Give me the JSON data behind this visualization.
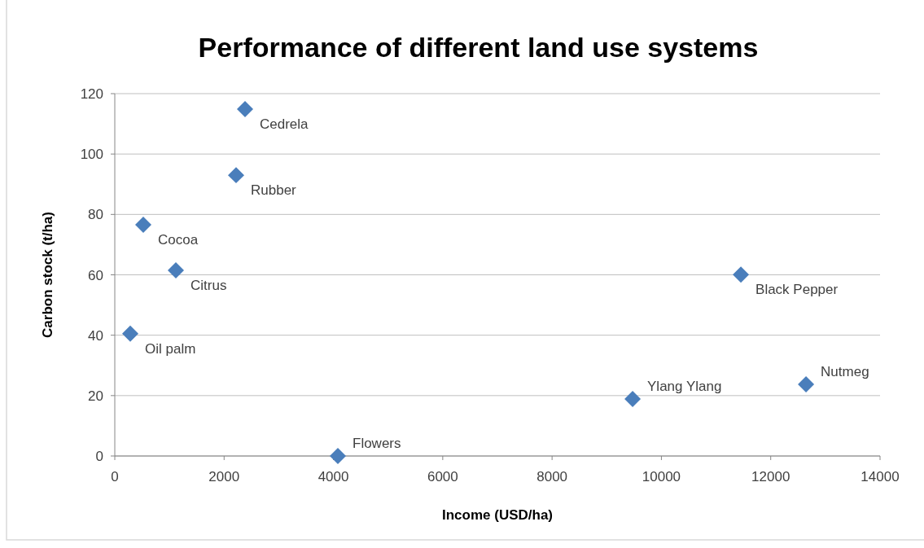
{
  "chart_data": {
    "type": "scatter",
    "title": "Performance of different land use systems",
    "xlabel": "Income (USD/ha)",
    "ylabel": "Carbon stock (t/ha)",
    "x": [
      2383,
      2219,
      521,
      1117,
      283,
      4081,
      9473,
      11454,
      12646
    ],
    "series": [
      {
        "color": "#4a7ebb",
        "values": [
          114.9,
          93,
          76.6,
          61.5,
          40.5,
          0,
          18.9,
          60.1,
          23.7
        ]
      }
    ],
    "annotations": [
      {
        "text": "Cedrela",
        "x": 2383,
        "y": 114.9
      },
      {
        "text": "Rubber",
        "x": 2219,
        "y": 93
      },
      {
        "text": "Cocoa",
        "x": 521,
        "y": 76.6
      },
      {
        "text": "Citrus",
        "x": 1117,
        "y": 61.5
      },
      {
        "text": "Oil palm",
        "x": 283,
        "y": 40.5
      },
      {
        "text": "Flowers",
        "x": 4081,
        "y": 0
      },
      {
        "text": "Ylang Ylang",
        "x": 9473,
        "y": 18.9
      },
      {
        "text": "Black Pepper",
        "x": 11454,
        "y": 60.1
      },
      {
        "text": "Nutmeg",
        "x": 12646,
        "y": 23.7
      }
    ],
    "xlim": [
      0,
      14000
    ],
    "xticks": [
      0,
      2000,
      4000,
      6000,
      8000,
      10000,
      12000,
      14000
    ],
    "ylim": [
      0,
      120
    ],
    "yticks": [
      0,
      20,
      40,
      60,
      80,
      100,
      120
    ],
    "grid": "y",
    "marker": "diamond"
  }
}
